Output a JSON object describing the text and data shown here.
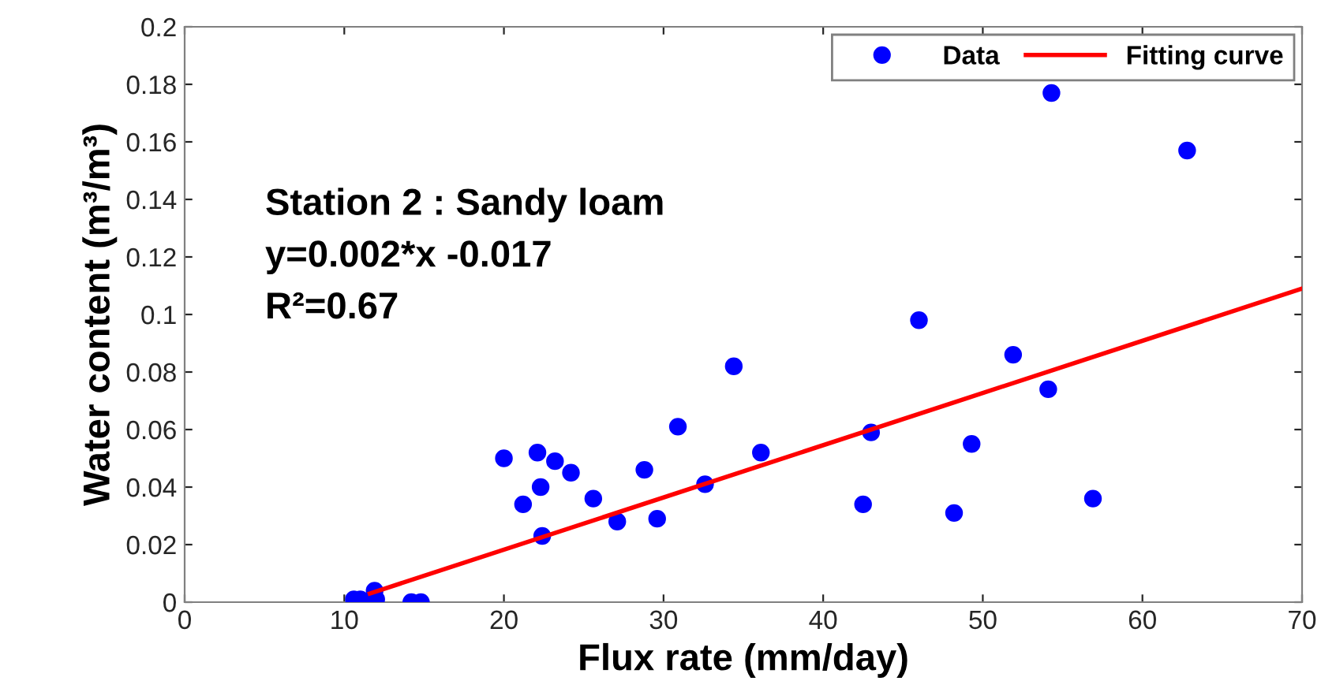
{
  "chart_data": {
    "type": "scatter",
    "xlabel": "Flux rate (mm/day)",
    "ylabel": "Water content (m³/m³)",
    "xlim": [
      0,
      70
    ],
    "xticks": [
      0,
      10,
      20,
      30,
      40,
      50,
      60,
      70
    ],
    "ylim": [
      0,
      0.2
    ],
    "yticks": [
      0,
      0.02,
      0.04,
      0.06,
      0.08,
      0.1,
      0.12,
      0.14,
      0.16,
      0.18,
      0.2
    ],
    "grid": false,
    "legend": "top right",
    "marker": "circle",
    "series": [
      {
        "name": "Data",
        "color": "#0000ff",
        "x": [
          10.6,
          11.0,
          11.9,
          12.0,
          14.2,
          14.8,
          20.0,
          21.2,
          22.1,
          22.3,
          22.4,
          23.2,
          24.2,
          25.6,
          27.1,
          28.8,
          29.6,
          30.9,
          32.6,
          34.4,
          36.1,
          42.5,
          43.0,
          46.0,
          48.2,
          49.3,
          51.9,
          54.1,
          54.3,
          56.9,
          62.8
        ],
        "values": [
          0.001,
          0.001,
          0.004,
          0.001,
          0.0,
          0.0,
          0.05,
          0.034,
          0.052,
          0.04,
          0.023,
          0.049,
          0.045,
          0.036,
          0.028,
          0.046,
          0.029,
          0.061,
          0.041,
          0.082,
          0.052,
          0.034,
          0.059,
          0.098,
          0.031,
          0.055,
          0.086,
          0.074,
          0.177,
          0.036,
          0.157
        ]
      },
      {
        "name": "Fitting curve",
        "color": "#ff0000",
        "type": "line",
        "marker": "none",
        "x": [
          11.6,
          70
        ],
        "values": [
          0.003,
          0.109
        ]
      }
    ],
    "annotations": [
      "Station 2 : Sandy loam",
      "y=0.002*x -0.017",
      "R²=0.67"
    ]
  }
}
